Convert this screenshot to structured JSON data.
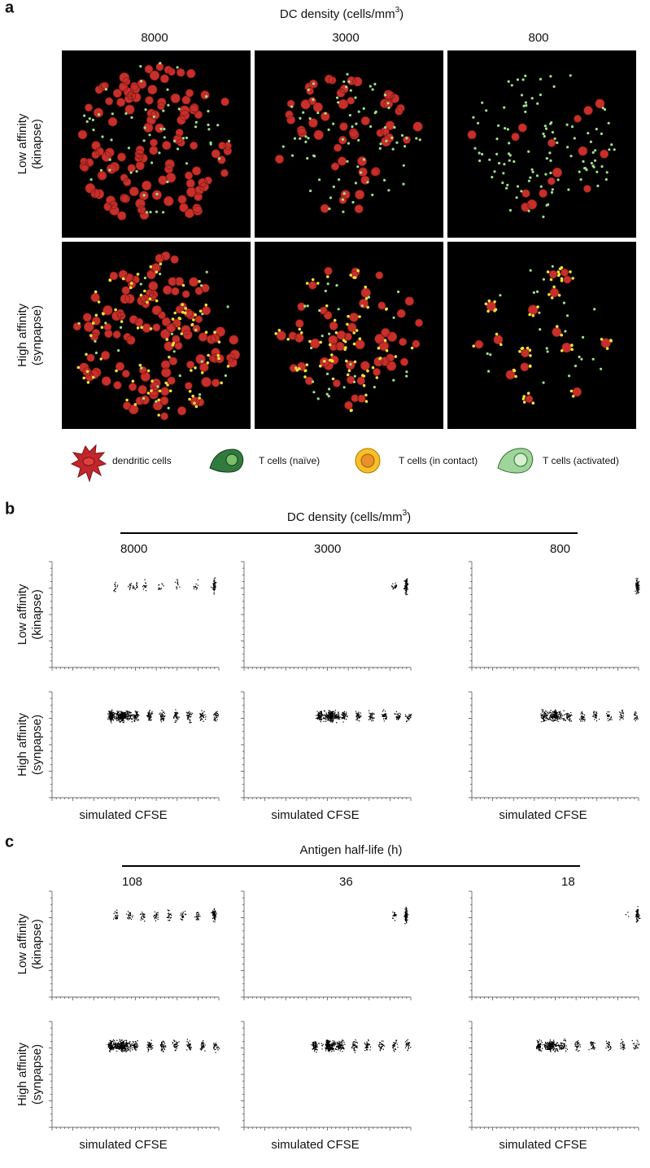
{
  "panel_a": {
    "label": "a",
    "title": {
      "text": "DC density (cells/mm",
      "superscript": "3",
      "suffix": ")"
    },
    "columns": [
      "8000",
      "3000",
      "800"
    ],
    "rows": [
      [
        "Low affinity",
        "(kinapse)"
      ],
      [
        "High affinity",
        "(synpapse)"
      ]
    ],
    "legend": [
      "dendritic cells",
      "T cells (naïve)",
      "T cells (in contact)",
      "T cells (activated)"
    ]
  },
  "panel_b": {
    "label": "b",
    "title": {
      "text": "DC density (cells/mm",
      "superscript": "3",
      "suffix": ")"
    },
    "columns": [
      "8000",
      "3000",
      "800"
    ],
    "rows": [
      [
        "Low affinity",
        "(kinapse)"
      ],
      [
        "High affinity",
        "(synpapse)"
      ]
    ],
    "x_label": "simulated CFSE"
  },
  "panel_c": {
    "label": "c",
    "title": "Antigen half-life (h)",
    "columns": [
      "108",
      "36",
      "18"
    ],
    "rows": [
      [
        "Low affinity",
        "(kinapse)"
      ],
      [
        "High affinity",
        "(synpapse)"
      ]
    ],
    "x_label": "simulated CFSE"
  }
}
